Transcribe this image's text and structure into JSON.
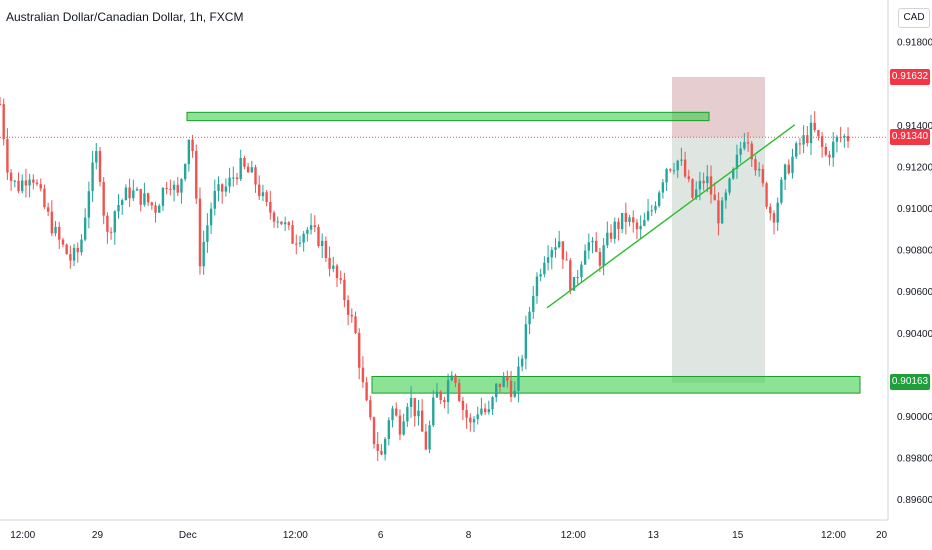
{
  "header": {
    "title": "Australian Dollar/Canadian Dollar, 1h, FXCM"
  },
  "currency_label": "CAD",
  "colors": {
    "up": "#26a69a",
    "down": "#ef5350",
    "zone_fill": "#2ecc40",
    "zone_stroke": "#1a9e2a",
    "trendline": "#2bbd2b",
    "stop_zone": "#8b1a2b",
    "target_zone": "#1b4d2b",
    "current_price_line": "#ef5350",
    "tag_red": "#f23645",
    "tag_green": "#1f9e3a"
  },
  "price_tags": [
    {
      "label": "0.91632",
      "value": 0.91632,
      "color": "red"
    },
    {
      "label": "0.91340",
      "value": 0.9134,
      "color": "red"
    },
    {
      "label": "0.90163",
      "value": 0.90163,
      "color": "green"
    }
  ],
  "chart_data": {
    "type": "candlestick",
    "title": "Australian Dollar/Canadian Dollar, 1h, FXCM",
    "ylim": [
      0.895,
      0.92
    ],
    "y_ticks": [
      "0.91800",
      "0.91400",
      "0.91200",
      "0.91000",
      "0.90800",
      "0.90600",
      "0.90400",
      "0.90000",
      "0.89800",
      "0.89600"
    ],
    "y_tick_values": [
      0.918,
      0.914,
      0.912,
      0.91,
      0.908,
      0.906,
      0.904,
      0.9,
      0.898,
      0.896
    ],
    "x_ticks": [
      "12:00",
      "29",
      "Dec",
      "12:00",
      "6",
      "8",
      "12:00",
      "13",
      "15",
      "12:00",
      "20"
    ],
    "x_tick_positions": [
      0.025,
      0.117,
      0.215,
      0.332,
      0.439,
      0.538,
      0.645,
      0.743,
      0.838,
      0.938,
      1.0
    ],
    "grid": false,
    "candle_close_path": [
      [
        0.0,
        0.915
      ],
      [
        0.01,
        0.9115
      ],
      [
        0.02,
        0.911
      ],
      [
        0.035,
        0.9118
      ],
      [
        0.05,
        0.91
      ],
      [
        0.065,
        0.9085
      ],
      [
        0.08,
        0.9075
      ],
      [
        0.09,
        0.908
      ],
      [
        0.1,
        0.911
      ],
      [
        0.11,
        0.9128
      ],
      [
        0.12,
        0.9085
      ],
      [
        0.13,
        0.91
      ],
      [
        0.145,
        0.9108
      ],
      [
        0.16,
        0.9105
      ],
      [
        0.175,
        0.91
      ],
      [
        0.19,
        0.9115
      ],
      [
        0.2,
        0.9105
      ],
      [
        0.215,
        0.914
      ],
      [
        0.225,
        0.9075
      ],
      [
        0.24,
        0.9105
      ],
      [
        0.255,
        0.911
      ],
      [
        0.27,
        0.912
      ],
      [
        0.285,
        0.9115
      ],
      [
        0.3,
        0.91
      ],
      [
        0.315,
        0.9095
      ],
      [
        0.33,
        0.9085
      ],
      [
        0.345,
        0.909
      ],
      [
        0.36,
        0.9085
      ],
      [
        0.375,
        0.907
      ],
      [
        0.39,
        0.9055
      ],
      [
        0.4,
        0.904
      ],
      [
        0.41,
        0.901
      ],
      [
        0.42,
        0.899
      ],
      [
        0.43,
        0.898
      ],
      [
        0.44,
        0.9005
      ],
      [
        0.45,
        0.8995
      ],
      [
        0.46,
        0.901
      ],
      [
        0.47,
        0.9
      ],
      [
        0.48,
        0.8985
      ],
      [
        0.49,
        0.901
      ],
      [
        0.5,
        0.901
      ],
      [
        0.51,
        0.9025
      ],
      [
        0.52,
        0.9005
      ],
      [
        0.53,
        0.8995
      ],
      [
        0.54,
        0.9005
      ],
      [
        0.55,
        0.9
      ],
      [
        0.56,
        0.9015
      ],
      [
        0.57,
        0.9018
      ],
      [
        0.58,
        0.901
      ],
      [
        0.59,
        0.9035
      ],
      [
        0.6,
        0.906
      ],
      [
        0.615,
        0.908
      ],
      [
        0.63,
        0.9085
      ],
      [
        0.645,
        0.906
      ],
      [
        0.66,
        0.9085
      ],
      [
        0.675,
        0.9075
      ],
      [
        0.69,
        0.909
      ],
      [
        0.705,
        0.9095
      ],
      [
        0.72,
        0.9088
      ],
      [
        0.735,
        0.91
      ],
      [
        0.75,
        0.912
      ],
      [
        0.765,
        0.9123
      ],
      [
        0.78,
        0.9105
      ],
      [
        0.795,
        0.9115
      ],
      [
        0.81,
        0.9095
      ],
      [
        0.825,
        0.9115
      ],
      [
        0.84,
        0.9138
      ],
      [
        0.855,
        0.9115
      ],
      [
        0.87,
        0.9095
      ],
      [
        0.885,
        0.9118
      ],
      [
        0.9,
        0.913
      ],
      [
        0.915,
        0.9138
      ],
      [
        0.93,
        0.9125
      ],
      [
        0.945,
        0.9134
      ],
      [
        0.955,
        0.9134
      ]
    ],
    "annotations": {
      "resistance_zone": {
        "from": 0.9142,
        "to": 0.9146
      },
      "support_zone": {
        "from": 0.9011,
        "to": 0.9019
      },
      "trendline": {
        "x1": 0.77,
        "y1": 0.9052,
        "x2": 1.0,
        "y2": 0.914
      },
      "current_price_line": 0.9134,
      "stop_zone": {
        "from": 0.9134,
        "to": 0.9163
      },
      "target_zone": {
        "from": 0.9016,
        "to": 0.9134
      }
    }
  }
}
